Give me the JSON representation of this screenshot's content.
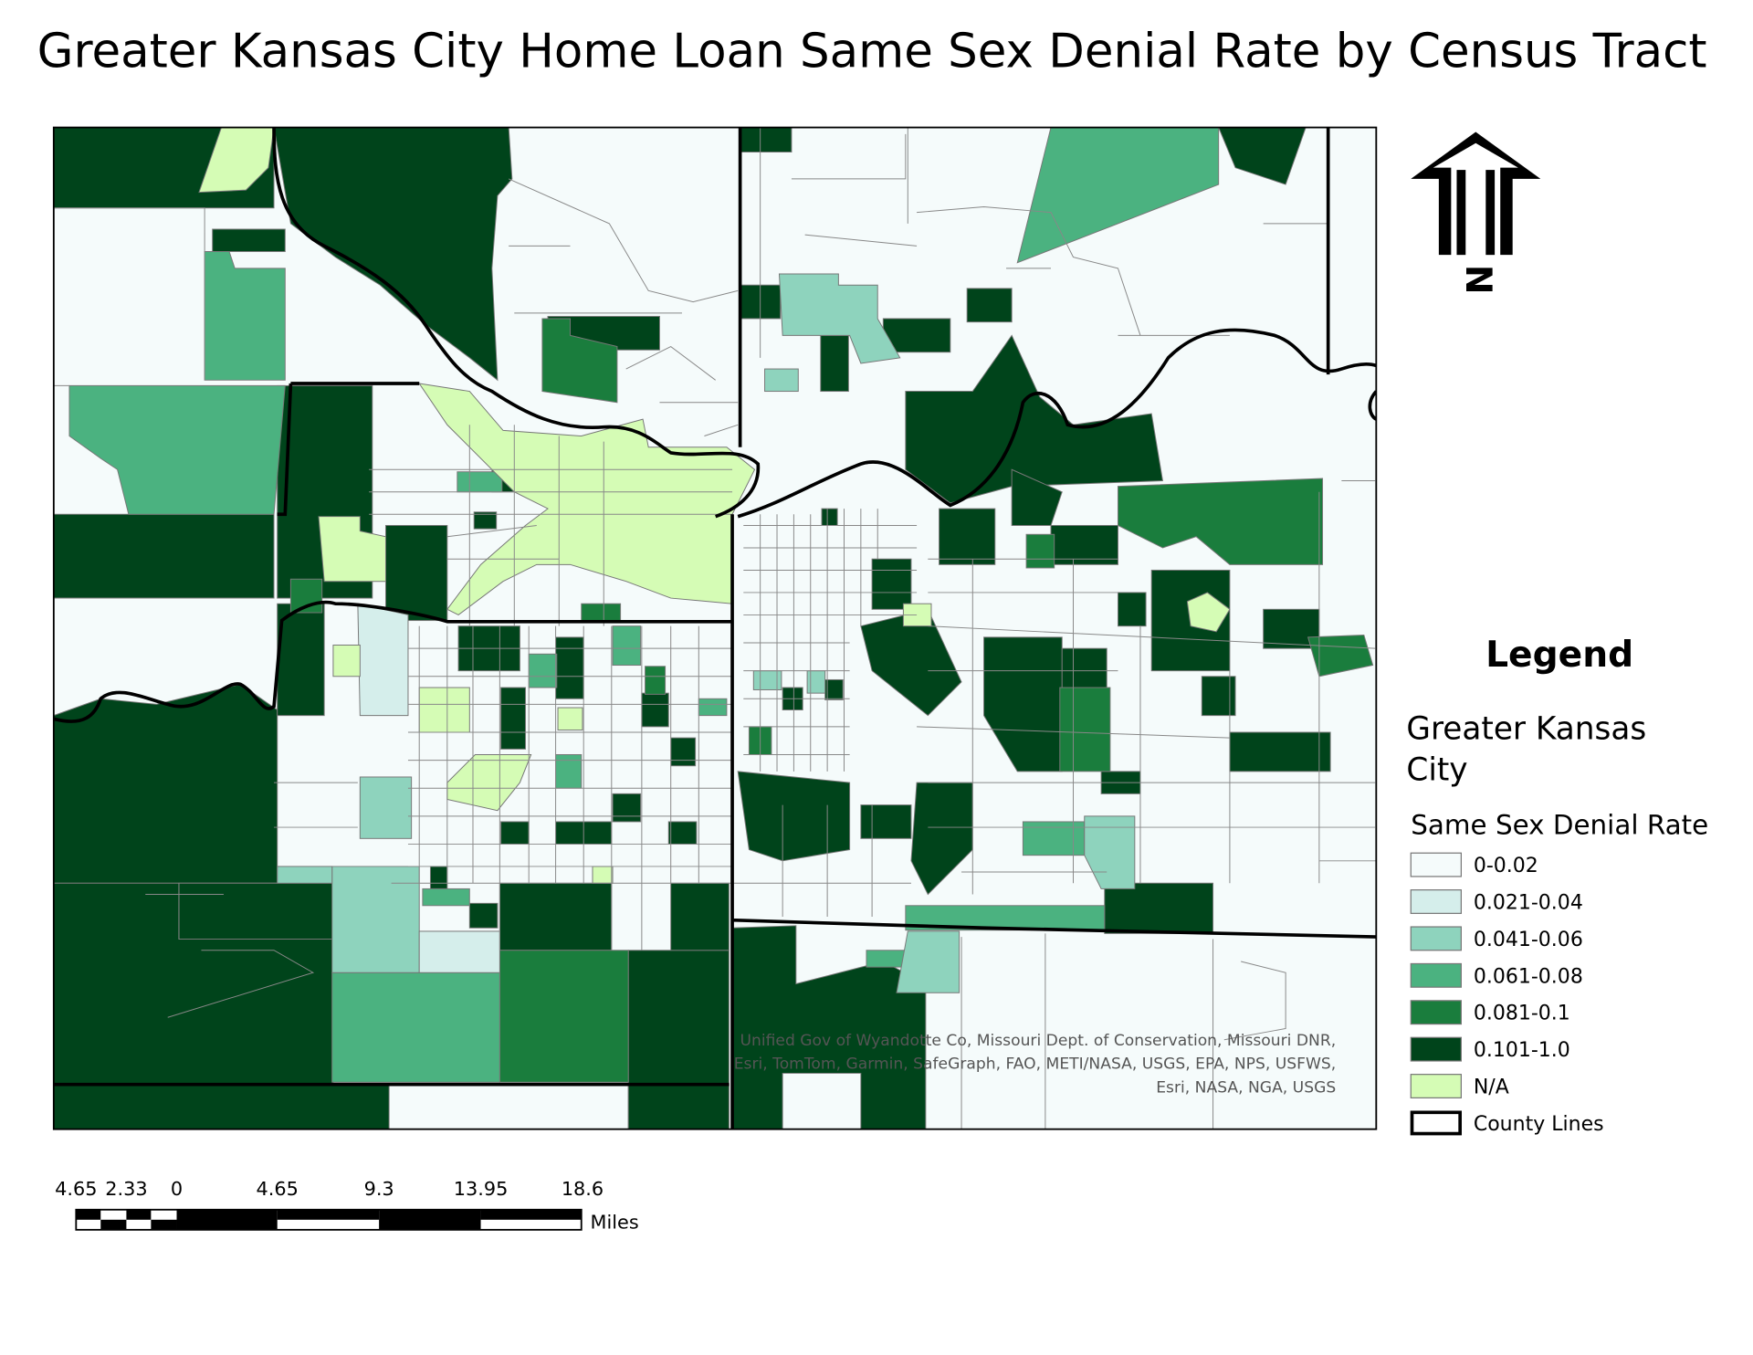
{
  "title": "Greater Kansas City Home Loan Same Sex Denial Rate by Census Tract",
  "north_arrow": {
    "letter": "N"
  },
  "legend": {
    "heading": "Legend",
    "layer": "Greater Kansas City",
    "field": "Same Sex Denial Rate",
    "classes": [
      {
        "label": "0-0.02",
        "color": "#f5fbfb"
      },
      {
        "label": "0.021-0.04",
        "color": "#d5eeeb"
      },
      {
        "label": "0.041-0.06",
        "color": "#8ed3bd"
      },
      {
        "label": "0.061-0.08",
        "color": "#4bb280"
      },
      {
        "label": "0.081-0.1",
        "color": "#1a7d3d"
      },
      {
        "label": "0.101-1.0",
        "color": "#00441b"
      },
      {
        "label": "N/A",
        "color": "#d5fcb5"
      }
    ],
    "county_lines": "County Lines"
  },
  "attribution": [
    "Unified Gov of Wyandotte Co, Missouri Dept. of Conservation, Missouri DNR,",
    "Esri, TomTom, Garmin, SafeGraph, FAO, METI/NASA, USGS, EPA, NPS, USFWS,",
    "Esri, NASA, NGA, USGS"
  ],
  "scale_bar": {
    "labels": [
      "4.65",
      "2.33",
      "0",
      "4.65",
      "9.3",
      "13.95",
      "18.6"
    ],
    "unit": "Miles"
  }
}
